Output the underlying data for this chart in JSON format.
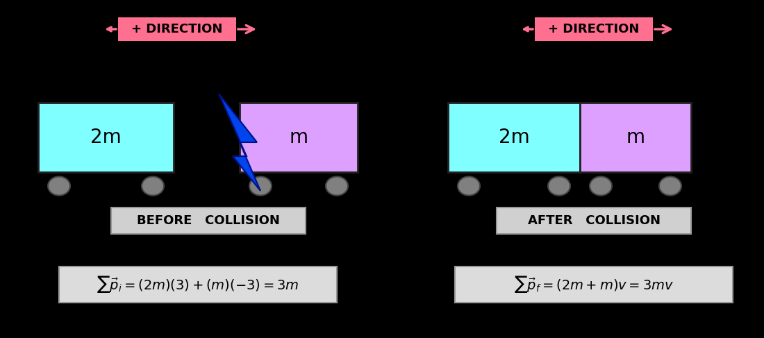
{
  "bg_color": "#000000",
  "cart_blue_color": "#7FFFFF",
  "cart_purple_color": "#DDA0FF",
  "wheel_color": "#808080",
  "arrow_pink": "#FF7090",
  "lightning_color": "#0044EE",
  "label_box_color": "#D0D0D0",
  "formula_box_color": "#DCDCDC",
  "text_color": "#000000",
  "before_label": "BEFORE   COLLISION",
  "after_label": "AFTER   COLLISION",
  "direction_text": "+ DIRECTION",
  "cart1_label": "2m",
  "cart2_label": "m",
  "formula_before": "$\\sum \\vec{p}_i = (2m)(3) + (m)(-3) = 3m$",
  "formula_after": "$\\sum \\vec{p}_f = (2m + m)v = 3mv$"
}
